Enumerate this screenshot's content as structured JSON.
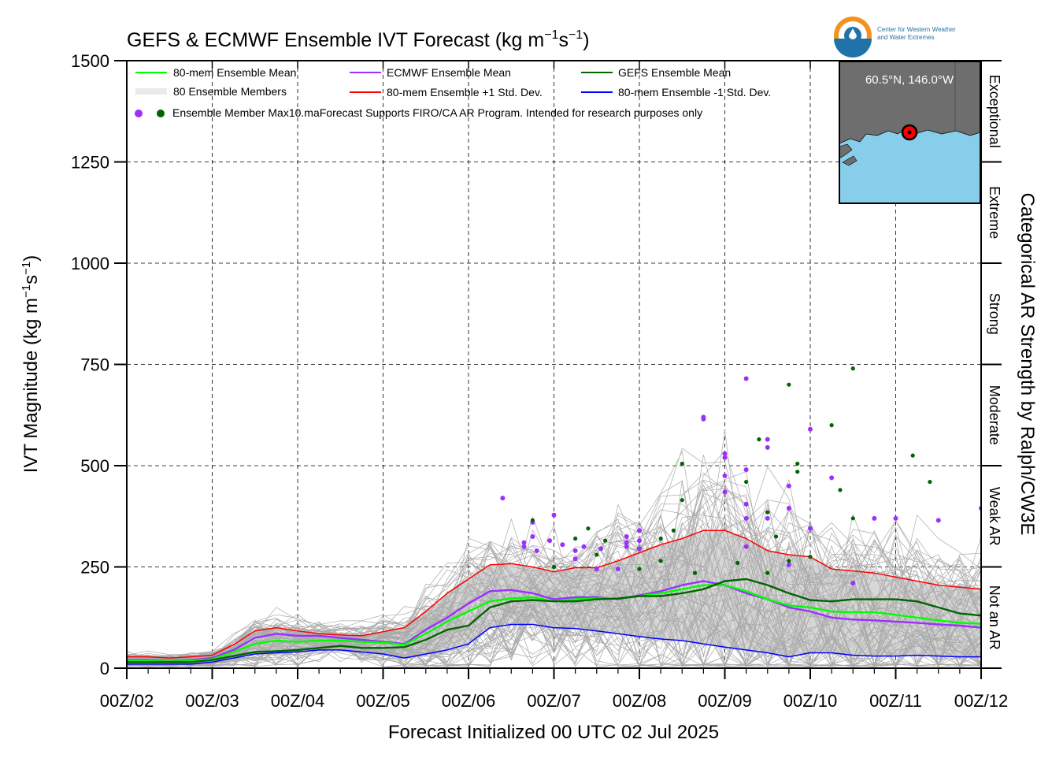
{
  "colors": {
    "ens_mean": "#00ff00",
    "ecmwf_mean": "#9b30ff",
    "gefs_mean": "#006400",
    "plus_std": "#ff0000",
    "minus_std": "#0000ff",
    "members": "#a9a9a9",
    "shade": "#d3d3d3",
    "map_land": "#6e6e6e",
    "map_water": "#87ceeb",
    "logo_orange": "#f29221",
    "logo_blue": "#1f73a8"
  },
  "logo": {
    "line1": "Center for Western Weather",
    "line2": "and Water Extremes"
  },
  "map_inset": {
    "location_label": "60.5°N, 146.0°W"
  },
  "chart_data": {
    "type": "line",
    "title": "GEFS & ECMWF Ensemble IVT Forecast (kg m$^{-1}$s$^{-1}$)",
    "title_main": "GEFS & ECMWF Ensemble IVT Forecast (kg m",
    "title_s": "s",
    "title_exp": "−1",
    "title_close": ")",
    "ylabel": "IVT Magnitude (kg m",
    "ylabel_s": "s",
    "ylabel_exp": "−1",
    "ylabel_close": ")",
    "xlabel": "Forecast Initialized 00 UTC 02 Jul 2025",
    "right_label": "Categorical AR Strength by Ralph/CW3E",
    "ylim": [
      0,
      1500
    ],
    "yticks": [
      0,
      250,
      500,
      750,
      1000,
      1250,
      1500
    ],
    "ytick_labels": [
      "0",
      "250",
      "500",
      "750",
      "1000",
      "1250",
      "1500"
    ],
    "x_range_days": [
      0,
      10
    ],
    "xtick_labels": [
      "00Z/02",
      "00Z/03",
      "00Z/04",
      "00Z/05",
      "00Z/06",
      "00Z/07",
      "00Z/08",
      "00Z/09",
      "00Z/10",
      "00Z/11",
      "00Z/12"
    ],
    "grid": true,
    "categories": [
      {
        "label": "Not an AR",
        "range": [
          0,
          250
        ]
      },
      {
        "label": "Weak AR",
        "range": [
          250,
          500
        ]
      },
      {
        "label": "Moderate",
        "range": [
          500,
          750
        ]
      },
      {
        "label": "Strong",
        "range": [
          750,
          1000
        ]
      },
      {
        "label": "Extreme",
        "range": [
          1000,
          1250
        ]
      },
      {
        "label": "Exceptional",
        "range": [
          1250,
          1500
        ]
      }
    ],
    "legend": {
      "placement": "top-left",
      "ens_mean": "80-mem Ensemble Mean",
      "members": "80 Ensemble Members",
      "max_points": "Ensemble Member Max10.maForecast Supports FIRO/CA AR Program. Intended for research purposes only",
      "ecmwf_mean": "ECMWF Ensemble Mean",
      "plus_std": "80-mem Ensemble +1 Std. Dev.",
      "gefs_mean": "GEFS Ensemble Mean",
      "minus_std": "80-mem Ensemble -1 Std. Dev."
    },
    "series": [
      {
        "name": "80-mem Ensemble +1 Std. Dev.",
        "key": "plus_std",
        "x": [
          0,
          0.25,
          0.5,
          0.75,
          1,
          1.25,
          1.5,
          1.75,
          2,
          2.25,
          2.5,
          2.75,
          3,
          3.25,
          3.5,
          3.75,
          4,
          4.25,
          4.5,
          4.75,
          5,
          5.25,
          5.5,
          5.75,
          6,
          6.25,
          6.5,
          6.75,
          7,
          7.25,
          7.5,
          7.75,
          8,
          8.25,
          8.5,
          8.75,
          9,
          9.25,
          9.5,
          9.75,
          10
        ],
        "values": [
          28,
          28,
          25,
          28,
          32,
          58,
          92,
          100,
          92,
          85,
          82,
          80,
          90,
          100,
          140,
          185,
          220,
          255,
          258,
          250,
          238,
          248,
          248,
          265,
          285,
          305,
          320,
          340,
          340,
          320,
          290,
          280,
          275,
          245,
          240,
          235,
          225,
          215,
          205,
          200,
          195
        ]
      },
      {
        "name": "ECMWF Ensemble Mean",
        "key": "ecmwf_mean",
        "x": [
          0,
          0.25,
          0.5,
          0.75,
          1,
          1.25,
          1.5,
          1.75,
          2,
          2.25,
          2.5,
          2.75,
          3,
          3.25,
          3.5,
          3.75,
          4,
          4.25,
          4.5,
          4.75,
          5,
          5.25,
          5.5,
          5.75,
          6,
          6.25,
          6.5,
          6.75,
          7,
          7.25,
          7.5,
          7.75,
          8,
          8.25,
          8.5,
          8.75,
          9,
          9.25,
          9.5,
          9.75,
          10
        ],
        "values": [
          20,
          20,
          18,
          20,
          25,
          45,
          75,
          85,
          80,
          80,
          75,
          70,
          65,
          60,
          95,
          125,
          160,
          190,
          193,
          185,
          170,
          175,
          175,
          170,
          180,
          190,
          205,
          215,
          205,
          185,
          170,
          150,
          140,
          125,
          120,
          118,
          115,
          112,
          108,
          105,
          100
        ]
      },
      {
        "name": "80-mem Ensemble Mean",
        "key": "ens_mean",
        "x": [
          0,
          0.25,
          0.5,
          0.75,
          1,
          1.25,
          1.5,
          1.75,
          2,
          2.25,
          2.5,
          2.75,
          3,
          3.25,
          3.5,
          3.75,
          4,
          4.25,
          4.5,
          4.75,
          5,
          5.25,
          5.5,
          5.75,
          6,
          6.25,
          6.5,
          6.75,
          7,
          7.25,
          7.5,
          7.75,
          8,
          8.25,
          8.5,
          8.75,
          9,
          9.25,
          9.5,
          9.75,
          10
        ],
        "values": [
          18,
          18,
          17,
          18,
          22,
          40,
          60,
          68,
          65,
          68,
          68,
          65,
          63,
          58,
          85,
          115,
          140,
          165,
          172,
          175,
          165,
          170,
          172,
          172,
          178,
          185,
          195,
          205,
          205,
          190,
          170,
          155,
          150,
          140,
          138,
          138,
          132,
          125,
          118,
          112,
          110
        ]
      },
      {
        "name": "GEFS Ensemble Mean",
        "key": "gefs_mean",
        "x": [
          0,
          0.25,
          0.5,
          0.75,
          1,
          1.25,
          1.5,
          1.75,
          2,
          2.25,
          2.5,
          2.75,
          3,
          3.25,
          3.5,
          3.75,
          4,
          4.25,
          4.5,
          4.75,
          5,
          5.25,
          5.5,
          5.75,
          6,
          6.25,
          6.5,
          6.75,
          7,
          7.25,
          7.5,
          7.75,
          8,
          8.25,
          8.5,
          8.75,
          9,
          9.25,
          9.5,
          9.75,
          10
        ],
        "values": [
          15,
          15,
          15,
          15,
          20,
          30,
          40,
          42,
          45,
          50,
          55,
          50,
          50,
          52,
          70,
          95,
          105,
          150,
          165,
          168,
          165,
          165,
          170,
          172,
          178,
          178,
          185,
          195,
          215,
          220,
          205,
          185,
          168,
          165,
          170,
          170,
          170,
          165,
          150,
          135,
          130
        ]
      },
      {
        "name": "80-mem Ensemble -1 Std. Dev.",
        "key": "minus_std",
        "x": [
          0,
          0.25,
          0.5,
          0.75,
          1,
          1.25,
          1.5,
          1.75,
          2,
          2.25,
          2.5,
          2.75,
          3,
          3.25,
          3.5,
          3.75,
          4,
          4.25,
          4.5,
          4.75,
          5,
          5.25,
          5.5,
          5.75,
          6,
          6.25,
          6.5,
          6.75,
          7,
          7.25,
          7.5,
          7.75,
          8,
          8.25,
          8.5,
          8.75,
          9,
          9.25,
          9.5,
          9.75,
          10
        ],
        "values": [
          10,
          10,
          10,
          10,
          15,
          25,
          35,
          38,
          40,
          45,
          45,
          40,
          35,
          25,
          35,
          45,
          60,
          100,
          108,
          108,
          100,
          98,
          92,
          85,
          78,
          72,
          68,
          60,
          52,
          45,
          38,
          28,
          38,
          38,
          32,
          30,
          30,
          32,
          30,
          28,
          28
        ]
      }
    ],
    "ecmwf_max_points": {
      "x": [
        4.4,
        4.65,
        4.65,
        4.75,
        4.75,
        4.8,
        4.95,
        5.0,
        5.1,
        5.25,
        5.25,
        5.35,
        5.5,
        5.55,
        5.75,
        5.85,
        5.85,
        5.85,
        6.0,
        6.0,
        6.0,
        6.75,
        6.75,
        7.0,
        7.0,
        7.0,
        7.0,
        7.25,
        7.25,
        7.25,
        7.25,
        7.25,
        7.5,
        7.5,
        7.5,
        7.75,
        7.75,
        7.75,
        8.0,
        8.0,
        8.25,
        8.5,
        8.75,
        9.0,
        9.5,
        10.0
      ],
      "values": [
        420,
        300,
        310,
        325,
        360,
        290,
        315,
        378,
        305,
        270,
        290,
        300,
        245,
        295,
        245,
        325,
        310,
        300,
        340,
        315,
        295,
        615,
        620,
        530,
        520,
        475,
        435,
        715,
        490,
        405,
        370,
        300,
        565,
        545,
        370,
        450,
        395,
        255,
        590,
        345,
        470,
        210,
        370,
        370,
        365,
        395
      ]
    },
    "gefs_max_points": {
      "x": [
        4.75,
        5.0,
        5.25,
        5.4,
        5.5,
        5.6,
        6.0,
        6.25,
        6.25,
        6.4,
        6.5,
        6.5,
        6.65,
        7.15,
        7.25,
        7.4,
        7.5,
        7.5,
        7.6,
        7.75,
        7.75,
        7.85,
        7.85,
        8.0,
        8.25,
        8.35,
        8.5,
        8.5,
        9.2,
        9.4
      ],
      "values": [
        365,
        250,
        320,
        345,
        280,
        315,
        245,
        320,
        265,
        340,
        415,
        505,
        235,
        260,
        460,
        565,
        385,
        235,
        325,
        265,
        700,
        505,
        485,
        275,
        600,
        440,
        370,
        740,
        525,
        460
      ]
    }
  }
}
